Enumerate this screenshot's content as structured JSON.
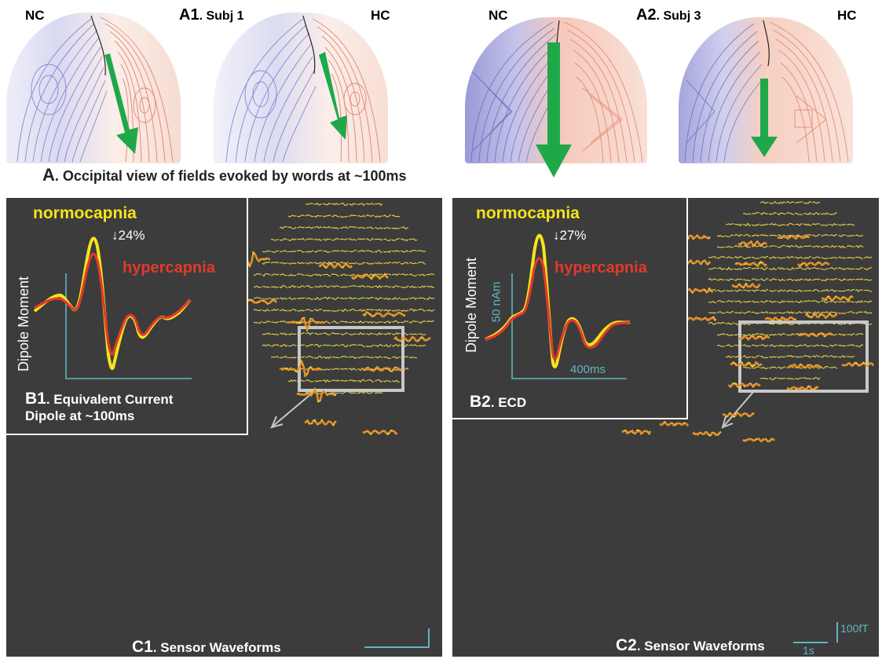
{
  "colors": {
    "panel_bg": "#3c3c3c",
    "nc_field": "#6b6bc4",
    "hc_field": "#e06a50",
    "arrow": "#1fa84a",
    "normo": "#f4e41c",
    "hyper": "#e23a2a",
    "axis": "#5fb6c2",
    "sensor_normo": "#f2d22a",
    "sensor_hyper": "#e8702a",
    "box": "#c8c8c8"
  },
  "panelA": {
    "left_nc": "NC",
    "left_title_letter": "A1",
    "left_title_rest": ". Subj 1",
    "left_hc": "HC",
    "right_nc": "NC",
    "right_title_letter": "A2",
    "right_title_rest": ". Subj 3",
    "right_hc": "HC",
    "caption_letter": "A",
    "caption_rest": ". Occipital view of fields evoked by words at ~100ms"
  },
  "panelB1": {
    "normo_label": "normocapnia",
    "hyper_label": "hypercapnia",
    "reduction": "↓24%",
    "ylabel": "Dipole Moment",
    "caption_letter": "B1",
    "caption_rest": ". Equivalent Current",
    "caption_line2": "Dipole at ~100ms"
  },
  "panelB2": {
    "normo_label": "normocapnia",
    "hyper_label": "hypercapnia",
    "reduction": "↓27%",
    "ylabel": "Dipole Moment",
    "y_scale": "50 nAm",
    "x_scale": "400ms",
    "caption_letter": "B2",
    "caption_rest": ". ECD"
  },
  "panelC1": {
    "caption_letter": "C1",
    "caption_rest": ". Sensor Waveforms"
  },
  "panelC2": {
    "caption_letter": "C2",
    "caption_rest": ". Sensor Waveforms",
    "x_scale": "1s",
    "y_scale": "100fT"
  }
}
